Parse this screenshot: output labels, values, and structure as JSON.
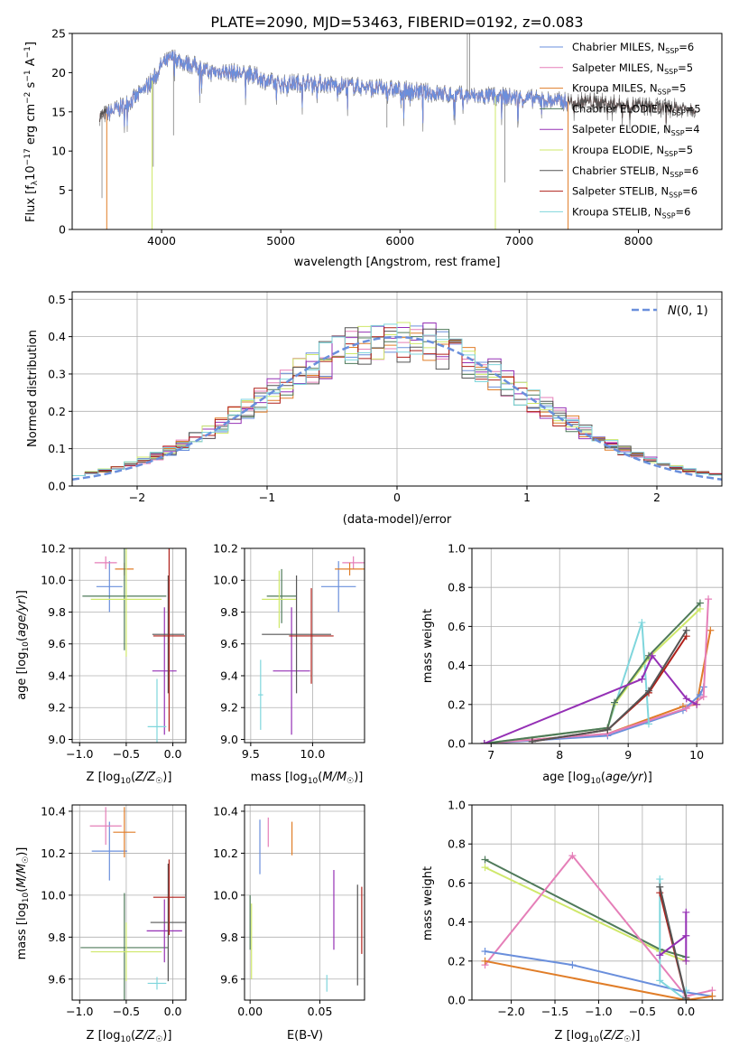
{
  "title": "PLATE=2090, MJD=53463, FIBERID=0192, z=0.083",
  "colors": {
    "Chabrier MILES": "#6a8fdc",
    "Salpeter MILES": "#e57fb8",
    "Kroupa MILES": "#e07d28",
    "Chabrier ELODIE": "#4f7a5a",
    "Salpeter ELODIE": "#9530b5",
    "Kroupa ELODIE": "#cfe86a",
    "Chabrier STELIB": "#555555",
    "Salpeter STELIB": "#b0201a",
    "Kroupa STELIB": "#7fd6dc",
    "gaussian": "#6a8fdc",
    "grid": "#b0b0b0"
  },
  "chart_data": [
    {
      "id": "spectrum",
      "type": "line",
      "xlabel": "wavelength [Angstrom, rest frame]",
      "ylabel": "Flux [f_λ 10^-17 erg cm^-2 s^-1 A^-1]",
      "xlim": [
        3250,
        8700
      ],
      "ylim": [
        0,
        25
      ],
      "xticks": [
        4000,
        5000,
        6000,
        7000,
        8000
      ],
      "yticks": [
        0,
        5,
        10,
        15,
        20,
        25
      ],
      "grid": false,
      "legend_position": "top-right",
      "legend": [
        {
          "model": "Chabrier MILES",
          "nssp": "6"
        },
        {
          "model": "Salpeter MILES",
          "nssp": "5"
        },
        {
          "model": "Kroupa MILES",
          "nssp": "5"
        },
        {
          "model": "Chabrier ELODIE",
          "nssp": "5"
        },
        {
          "model": "Salpeter ELODIE",
          "nssp": "4"
        },
        {
          "model": "Kroupa ELODIE",
          "nssp": "5"
        },
        {
          "model": "Chabrier STELIB",
          "nssp": "6"
        },
        {
          "model": "Salpeter STELIB",
          "nssp": "6"
        },
        {
          "model": "Kroupa STELIB",
          "nssp": "6"
        }
      ],
      "continuum": {
        "x": [
          3500,
          3650,
          3800,
          3950,
          4000,
          4100,
          4200,
          4300,
          4400,
          4500,
          4700,
          4800,
          4900,
          5000,
          5200,
          5400,
          5600,
          5800,
          6000,
          6200,
          6400,
          6600,
          6800,
          7000,
          7200,
          7400,
          7600,
          7800,
          8000,
          8200,
          8400
        ],
        "y": [
          14.5,
          15.5,
          17.0,
          19.5,
          21.0,
          22.0,
          21.2,
          20.8,
          20.0,
          20.2,
          19.8,
          19.5,
          18.8,
          18.5,
          18.8,
          18.5,
          18.3,
          18.0,
          17.8,
          17.5,
          17.2,
          17.0,
          17.0,
          16.8,
          16.5,
          16.3,
          16.3,
          16.0,
          15.8,
          15.5,
          15.5
        ]
      }
    },
    {
      "id": "residual-histogram",
      "type": "area",
      "xlabel": "(data-model)/error",
      "ylabel": "Normed distribution",
      "xlim": [
        -2.5,
        2.5
      ],
      "ylim": [
        0,
        0.52
      ],
      "xticks": [
        -2,
        -1,
        0,
        1,
        2
      ],
      "yticks": [
        0.0,
        0.1,
        0.2,
        0.3,
        0.4,
        0.5
      ],
      "grid": true,
      "legend_position": "top-right",
      "gaussian_label": "N(0,1)",
      "bin_width": 0.1,
      "bin_start": -2.5
    },
    {
      "id": "age-vs-Z",
      "type": "scatter",
      "xlabel": "Z [log10(Z/Z☉)]",
      "ylabel": "age [log10(age/yr)]",
      "xlim": [
        -1.08,
        0.14
      ],
      "ylim": [
        8.98,
        10.2
      ],
      "xticks": [
        -1.0,
        -0.5,
        0.0
      ],
      "yticks": [
        9.0,
        9.2,
        9.4,
        9.6,
        9.8,
        10.0,
        10.2
      ],
      "grid": true,
      "points": [
        {
          "model": "Chabrier MILES",
          "x": -0.68,
          "xerr": 0.14,
          "y": 9.96,
          "yerr": 0.16
        },
        {
          "model": "Salpeter MILES",
          "x": -0.72,
          "xerr": 0.12,
          "y": 10.11,
          "yerr": 0.04
        },
        {
          "model": "Kroupa MILES",
          "x": -0.52,
          "xerr": 0.1,
          "y": 10.07,
          "yerr": 0.04
        },
        {
          "model": "Chabrier ELODIE",
          "x": -0.52,
          "xerr": 0.45,
          "y": 9.9,
          "yerr": 0.34
        },
        {
          "model": "Salpeter ELODIE",
          "x": -0.09,
          "xerr": 0.13,
          "y": 9.43,
          "yerr": 0.4
        },
        {
          "model": "Kroupa ELODIE",
          "x": -0.5,
          "xerr": 0.38,
          "y": 9.88,
          "yerr": 0.36
        },
        {
          "model": "Chabrier STELIB",
          "x": -0.05,
          "xerr": 0.17,
          "y": 9.66,
          "yerr": 0.37
        },
        {
          "model": "Salpeter STELIB",
          "x": -0.04,
          "xerr": 0.17,
          "y": 9.65,
          "yerr": 0.6
        },
        {
          "model": "Kroupa STELIB",
          "x": -0.17,
          "xerr": 0.1,
          "y": 9.08,
          "yerr": 0.3
        }
      ]
    },
    {
      "id": "age-vs-mass",
      "type": "scatter",
      "xlabel": "mass [log10(M/M☉)]",
      "ylabel": "",
      "xlim": [
        9.45,
        10.42
      ],
      "ylim": [
        8.98,
        10.2
      ],
      "xticks": [
        9.5,
        10.0
      ],
      "yticks": [
        9.0,
        9.2,
        9.4,
        9.6,
        9.8,
        10.0,
        10.2
      ],
      "grid": true,
      "points": [
        {
          "model": "Chabrier MILES",
          "x": 10.21,
          "xerr": 0.14,
          "y": 9.96,
          "yerr": 0.16
        },
        {
          "model": "Salpeter MILES",
          "x": 10.33,
          "xerr": 0.09,
          "y": 10.11,
          "yerr": 0.04
        },
        {
          "model": "Kroupa MILES",
          "x": 10.3,
          "xerr": 0.12,
          "y": 10.07,
          "yerr": 0.04
        },
        {
          "model": "Chabrier ELODIE",
          "x": 9.75,
          "xerr": 0.12,
          "y": 9.9,
          "yerr": 0.17
        },
        {
          "model": "Salpeter ELODIE",
          "x": 9.83,
          "xerr": 0.15,
          "y": 9.43,
          "yerr": 0.4
        },
        {
          "model": "Kroupa ELODIE",
          "x": 9.73,
          "xerr": 0.14,
          "y": 9.88,
          "yerr": 0.18
        },
        {
          "model": "Chabrier STELIB",
          "x": 9.87,
          "xerr": 0.28,
          "y": 9.66,
          "yerr": 0.37
        },
        {
          "model": "Salpeter STELIB",
          "x": 9.99,
          "xerr": 0.18,
          "y": 9.65,
          "yerr": 0.3
        },
        {
          "model": "Kroupa STELIB",
          "x": 9.58,
          "xerr": 0.02,
          "y": 9.28,
          "yerr": 0.22
        }
      ]
    },
    {
      "id": "mass-weight-vs-age",
      "type": "line",
      "xlabel": "age [log10(age/yr)]",
      "ylabel": "mass weight",
      "xlim": [
        6.72,
        10.38
      ],
      "ylim": [
        0,
        1.0
      ],
      "xticks": [
        7,
        8,
        9,
        10
      ],
      "yticks": [
        0.0,
        0.2,
        0.4,
        0.6,
        0.8,
        1.0
      ],
      "grid": true,
      "series": [
        {
          "model": "Kroupa MILES",
          "x": [
            6.9,
            8.7,
            9.8,
            10.0,
            10.2
          ],
          "y": [
            0.0,
            0.05,
            0.19,
            0.2,
            0.58
          ]
        },
        {
          "model": "Chabrier MILES",
          "x": [
            6.9,
            8.7,
            9.8,
            10.05,
            10.1
          ],
          "y": [
            0.0,
            0.04,
            0.17,
            0.25,
            0.29
          ]
        },
        {
          "model": "Salpeter MILES",
          "x": [
            6.9,
            8.7,
            9.85,
            10.1,
            10.17
          ],
          "y": [
            0.0,
            0.05,
            0.18,
            0.24,
            0.74
          ]
        },
        {
          "model": "Kroupa STELIB",
          "x": [
            6.9,
            8.7,
            9.2,
            9.3
          ],
          "y": [
            0.0,
            0.08,
            0.62,
            0.1
          ]
        },
        {
          "model": "Kroupa ELODIE",
          "x": [
            6.9,
            8.7,
            8.8,
            9.3,
            10.05
          ],
          "y": [
            0.0,
            0.08,
            0.2,
            0.44,
            0.69
          ]
        },
        {
          "model": "Chabrier ELODIE",
          "x": [
            6.9,
            8.7,
            8.8,
            9.3,
            10.05
          ],
          "y": [
            0.0,
            0.08,
            0.21,
            0.45,
            0.72
          ]
        },
        {
          "model": "Salpeter ELODIE",
          "x": [
            6.9,
            9.2,
            9.35,
            9.85,
            10.0
          ],
          "y": [
            0.0,
            0.33,
            0.45,
            0.23,
            0.2
          ]
        },
        {
          "model": "Salpeter STELIB",
          "x": [
            7.6,
            8.7,
            9.3,
            9.85
          ],
          "y": [
            0.01,
            0.07,
            0.26,
            0.55
          ]
        },
        {
          "model": "Chabrier STELIB",
          "x": [
            7.6,
            8.7,
            9.3,
            9.85
          ],
          "y": [
            0.01,
            0.07,
            0.27,
            0.58
          ]
        }
      ]
    },
    {
      "id": "mass-vs-Z",
      "type": "scatter",
      "xlabel": "Z [log10(Z/Z☉)]",
      "ylabel": "mass [log10(M/M☉)]",
      "xlim": [
        -1.08,
        0.14
      ],
      "ylim": [
        9.5,
        10.43
      ],
      "xticks": [
        -1.0,
        -0.5,
        0.0
      ],
      "yticks": [
        9.6,
        9.8,
        10.0,
        10.2,
        10.4
      ],
      "grid": true,
      "points": [
        {
          "model": "Chabrier MILES",
          "x": -0.68,
          "xerr": 0.19,
          "y": 10.21,
          "yerr": 0.14
        },
        {
          "model": "Salpeter MILES",
          "x": -0.72,
          "xerr": 0.17,
          "y": 10.33,
          "yerr": 0.09
        },
        {
          "model": "Kroupa MILES",
          "x": -0.52,
          "xerr": 0.12,
          "y": 10.3,
          "yerr": 0.12
        },
        {
          "model": "Chabrier ELODIE",
          "x": -0.52,
          "xerr": 0.47,
          "y": 9.75,
          "yerr": 0.26
        },
        {
          "model": "Salpeter ELODIE",
          "x": -0.09,
          "xerr": 0.19,
          "y": 9.83,
          "yerr": 0.15
        },
        {
          "model": "Kroupa ELODIE",
          "x": -0.5,
          "xerr": 0.38,
          "y": 9.73,
          "yerr": 0.14
        },
        {
          "model": "Chabrier STELIB",
          "x": -0.05,
          "xerr": 0.19,
          "y": 9.87,
          "yerr": 0.28
        },
        {
          "model": "Salpeter STELIB",
          "x": -0.04,
          "xerr": 0.17,
          "y": 9.99,
          "yerr": 0.18
        },
        {
          "model": "Kroupa STELIB",
          "x": -0.17,
          "xerr": 0.1,
          "y": 9.58,
          "yerr": 0.03
        }
      ]
    },
    {
      "id": "mass-vs-EBV",
      "type": "scatter",
      "xlabel": "E(B-V)",
      "ylabel": "",
      "xlim": [
        -0.004,
        0.082
      ],
      "ylim": [
        9.5,
        10.43
      ],
      "xticks": [
        0.0,
        0.05
      ],
      "yticks": [
        9.6,
        9.8,
        10.0,
        10.2,
        10.4
      ],
      "grid": true,
      "points": [
        {
          "model": "Chabrier MILES",
          "x": 0.007,
          "y": 10.23,
          "yerr": 0.13
        },
        {
          "model": "Salpeter MILES",
          "x": 0.013,
          "y": 10.3,
          "yerr": 0.07
        },
        {
          "model": "Kroupa MILES",
          "x": 0.03,
          "y": 10.27,
          "yerr": 0.08
        },
        {
          "model": "Chabrier ELODIE",
          "x": 0.0,
          "y": 9.87,
          "yerr": 0.13
        },
        {
          "model": "Salpeter ELODIE",
          "x": 0.06,
          "y": 9.93,
          "yerr": 0.19
        },
        {
          "model": "Kroupa ELODIE",
          "x": 0.001,
          "y": 9.78,
          "yerr": 0.18
        },
        {
          "model": "Chabrier STELIB",
          "x": 0.077,
          "y": 9.81,
          "yerr": 0.24
        },
        {
          "model": "Salpeter STELIB",
          "x": 0.08,
          "y": 9.88,
          "yerr": 0.16
        },
        {
          "model": "Kroupa STELIB",
          "x": 0.055,
          "y": 9.58,
          "yerr": 0.04
        }
      ]
    },
    {
      "id": "mass-weight-vs-Z",
      "type": "line",
      "xlabel": "Z [log10(Z/Z☉)]",
      "ylabel": "mass weight",
      "xlim": [
        -2.45,
        0.42
      ],
      "ylim": [
        0,
        1.0
      ],
      "xticks": [
        -2.0,
        -1.5,
        -1.0,
        -0.5,
        0.0
      ],
      "yticks": [
        0.0,
        0.2,
        0.4,
        0.6,
        0.8,
        1.0
      ],
      "grid": true,
      "series": [
        {
          "model": "Chabrier ELODIE",
          "x": [
            -2.3,
            -0.3,
            0.0
          ],
          "y": [
            0.72,
            0.26,
            0.22
          ]
        },
        {
          "model": "Kroupa ELODIE",
          "x": [
            -2.3,
            -0.3,
            0.0
          ],
          "y": [
            0.68,
            0.25,
            0.2
          ]
        },
        {
          "model": "Salpeter MILES",
          "x": [
            -2.3,
            -1.3,
            0.0,
            0.3
          ],
          "y": [
            0.18,
            0.74,
            0.02,
            0.05
          ]
        },
        {
          "model": "Chabrier MILES",
          "x": [
            -2.3,
            -1.3,
            0.0,
            0.3
          ],
          "y": [
            0.25,
            0.18,
            0.04,
            0.02
          ]
        },
        {
          "model": "Kroupa MILES",
          "x": [
            -2.3,
            0.0,
            0.3
          ],
          "y": [
            0.2,
            0.0,
            0.02
          ]
        },
        {
          "model": "Kroupa STELIB",
          "x": [
            -0.3,
            -0.3,
            0.0,
            0.0
          ],
          "y": [
            0.62,
            0.1,
            0.0,
            0.05
          ]
        },
        {
          "model": "Salpeter STELIB",
          "x": [
            -0.3,
            0.0,
            0.0
          ],
          "y": [
            0.55,
            0.01,
            0.0
          ]
        },
        {
          "model": "Chabrier STELIB",
          "x": [
            -0.3,
            0.0,
            0.0
          ],
          "y": [
            0.58,
            0.01,
            0.0
          ]
        },
        {
          "model": "Salpeter ELODIE",
          "x": [
            -0.3,
            0.0,
            0.0,
            0.0
          ],
          "y": [
            0.23,
            0.33,
            0.45,
            0.2
          ]
        }
      ]
    }
  ]
}
